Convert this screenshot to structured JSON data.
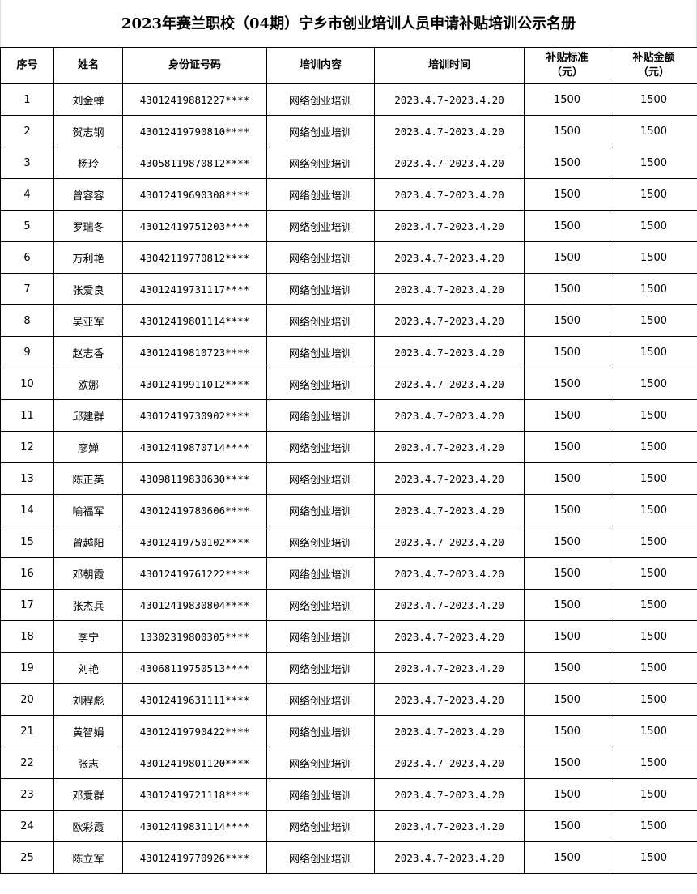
{
  "title": "2023年赛兰职校（04期）宁乡市创业培训人员申请补贴培训公示名册",
  "headers": {
    "index": "序号",
    "name": "姓名",
    "id_number": "身份证号码",
    "content": "培训内容",
    "period": "培训时间",
    "standard": "补贴标准\n（元）",
    "amount": "补贴金额\n（元）"
  },
  "rows": [
    {
      "no": "1",
      "name": "刘金蝉",
      "id": "43012419881227****",
      "content": "网络创业培训",
      "period": "2023.4.7-2023.4.20",
      "standard": "1500",
      "amount": "1500"
    },
    {
      "no": "2",
      "name": "贺志钢",
      "id": "43012419790810****",
      "content": "网络创业培训",
      "period": "2023.4.7-2023.4.20",
      "standard": "1500",
      "amount": "1500"
    },
    {
      "no": "3",
      "name": "杨玲",
      "id": "43058119870812****",
      "content": "网络创业培训",
      "period": "2023.4.7-2023.4.20",
      "standard": "1500",
      "amount": "1500"
    },
    {
      "no": "4",
      "name": "曾容容",
      "id": "43012419690308****",
      "content": "网络创业培训",
      "period": "2023.4.7-2023.4.20",
      "standard": "1500",
      "amount": "1500"
    },
    {
      "no": "5",
      "name": "罗瑞冬",
      "id": "43012419751203****",
      "content": "网络创业培训",
      "period": "2023.4.7-2023.4.20",
      "standard": "1500",
      "amount": "1500"
    },
    {
      "no": "6",
      "name": "万利艳",
      "id": "43042119770812****",
      "content": "网络创业培训",
      "period": "2023.4.7-2023.4.20",
      "standard": "1500",
      "amount": "1500"
    },
    {
      "no": "7",
      "name": "张爱良",
      "id": "43012419731117****",
      "content": "网络创业培训",
      "period": "2023.4.7-2023.4.20",
      "standard": "1500",
      "amount": "1500"
    },
    {
      "no": "8",
      "name": "吴亚军",
      "id": "43012419801114****",
      "content": "网络创业培训",
      "period": "2023.4.7-2023.4.20",
      "standard": "1500",
      "amount": "1500"
    },
    {
      "no": "9",
      "name": "赵志香",
      "id": "43012419810723****",
      "content": "网络创业培训",
      "period": "2023.4.7-2023.4.20",
      "standard": "1500",
      "amount": "1500"
    },
    {
      "no": "10",
      "name": "欧娜",
      "id": "43012419911012****",
      "content": "网络创业培训",
      "period": "2023.4.7-2023.4.20",
      "standard": "1500",
      "amount": "1500"
    },
    {
      "no": "11",
      "name": "邱建群",
      "id": "43012419730902****",
      "content": "网络创业培训",
      "period": "2023.4.7-2023.4.20",
      "standard": "1500",
      "amount": "1500"
    },
    {
      "no": "12",
      "name": "廖婵",
      "id": "43012419870714****",
      "content": "网络创业培训",
      "period": "2023.4.7-2023.4.20",
      "standard": "1500",
      "amount": "1500"
    },
    {
      "no": "13",
      "name": "陈正英",
      "id": "43098119830630****",
      "content": "网络创业培训",
      "period": "2023.4.7-2023.4.20",
      "standard": "1500",
      "amount": "1500"
    },
    {
      "no": "14",
      "name": "喻福军",
      "id": "43012419780606****",
      "content": "网络创业培训",
      "period": "2023.4.7-2023.4.20",
      "standard": "1500",
      "amount": "1500"
    },
    {
      "no": "15",
      "name": "曾越阳",
      "id": "43012419750102****",
      "content": "网络创业培训",
      "period": "2023.4.7-2023.4.20",
      "standard": "1500",
      "amount": "1500"
    },
    {
      "no": "16",
      "name": "邓朝霞",
      "id": "43012419761222****",
      "content": "网络创业培训",
      "period": "2023.4.7-2023.4.20",
      "standard": "1500",
      "amount": "1500"
    },
    {
      "no": "17",
      "name": "张杰兵",
      "id": "43012419830804****",
      "content": "网络创业培训",
      "period": "2023.4.7-2023.4.20",
      "standard": "1500",
      "amount": "1500"
    },
    {
      "no": "18",
      "name": "李宁",
      "id": "13302319800305****",
      "content": "网络创业培训",
      "period": "2023.4.7-2023.4.20",
      "standard": "1500",
      "amount": "1500"
    },
    {
      "no": "19",
      "name": "刘艳",
      "id": "43068119750513****",
      "content": "网络创业培训",
      "period": "2023.4.7-2023.4.20",
      "standard": "1500",
      "amount": "1500"
    },
    {
      "no": "20",
      "name": "刘程彪",
      "id": "43012419631111****",
      "content": "网络创业培训",
      "period": "2023.4.7-2023.4.20",
      "standard": "1500",
      "amount": "1500"
    },
    {
      "no": "21",
      "name": "黄智娟",
      "id": "43012419790422****",
      "content": "网络创业培训",
      "period": "2023.4.7-2023.4.20",
      "standard": "1500",
      "amount": "1500"
    },
    {
      "no": "22",
      "name": "张志",
      "id": "43012419801120****",
      "content": "网络创业培训",
      "period": "2023.4.7-2023.4.20",
      "standard": "1500",
      "amount": "1500"
    },
    {
      "no": "23",
      "name": "邓爱群",
      "id": "43012419721118****",
      "content": "网络创业培训",
      "period": "2023.4.7-2023.4.20",
      "standard": "1500",
      "amount": "1500"
    },
    {
      "no": "24",
      "name": "欧彩霞",
      "id": "43012419831114****",
      "content": "网络创业培训",
      "period": "2023.4.7-2023.4.20",
      "standard": "1500",
      "amount": "1500"
    },
    {
      "no": "25",
      "name": "陈立军",
      "id": "43012419770926****",
      "content": "网络创业培训",
      "period": "2023.4.7-2023.4.20",
      "standard": "1500",
      "amount": "1500"
    }
  ]
}
